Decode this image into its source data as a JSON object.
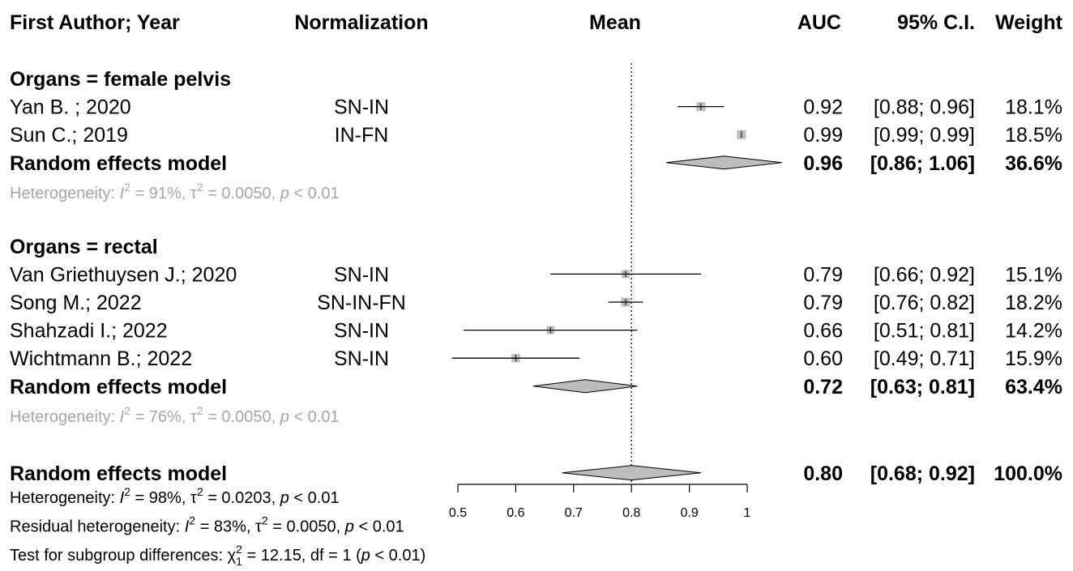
{
  "chart_data": {
    "type": "forest",
    "columns": {
      "author": "First Author; Year",
      "normalization": "Normalization",
      "mean": "Mean",
      "auc": "AUC",
      "ci": "95% C.I.",
      "weight": "Weight"
    },
    "xlim": [
      0.5,
      1
    ],
    "xticks": [
      0.5,
      0.6,
      0.7,
      0.8,
      0.9,
      1
    ],
    "marker_color": "#bdbdbd",
    "diamond_color": "#bdbdbd",
    "group_color": "#a6a6a6",
    "groups": [
      {
        "title": "Organs = female pelvis",
        "studies": [
          {
            "author": "Yan B. ; 2020",
            "normalization": "SN-IN",
            "auc": 0.92,
            "auc_label": "0.92",
            "ci": [
              0.88,
              0.96
            ],
            "ci_label": "[0.88; 0.96]",
            "weight": 18.1,
            "weight_label": "18.1%"
          },
          {
            "author": "Sun C.; 2019",
            "normalization": "IN-FN",
            "auc": 0.99,
            "auc_label": "0.99",
            "ci": [
              0.99,
              0.99
            ],
            "ci_label": "[0.99; 0.99]",
            "weight": 18.5,
            "weight_label": "18.5%"
          }
        ],
        "model": {
          "label": "Random effects model",
          "estimate": 0.96,
          "estimate_label": "0.96",
          "ci": [
            0.86,
            1.06
          ],
          "ci_label": "[0.86; 1.06]",
          "weight": 36.6,
          "weight_label": "36.6%"
        },
        "heterogeneity": [
          {
            "text": "Heterogeneity: "
          },
          {
            "text": "I",
            "style": "italic"
          },
          {
            "text": "2",
            "style": "sup"
          },
          {
            "text": " = 91%, τ"
          },
          {
            "text": "2",
            "style": "sup"
          },
          {
            "text": " = 0.0050, "
          },
          {
            "text": "p",
            "style": "italic"
          },
          {
            "text": " < 0.01"
          }
        ]
      },
      {
        "title": "Organs = rectal",
        "studies": [
          {
            "author": "Van Griethuysen J.; 2020",
            "normalization": "SN-IN",
            "auc": 0.79,
            "auc_label": "0.79",
            "ci": [
              0.66,
              0.92
            ],
            "ci_label": "[0.66; 0.92]",
            "weight": 15.1,
            "weight_label": "15.1%"
          },
          {
            "author": "Song M.; 2022",
            "normalization": "SN-IN-FN",
            "auc": 0.79,
            "auc_label": "0.79",
            "ci": [
              0.76,
              0.82
            ],
            "ci_label": "[0.76; 0.82]",
            "weight": 18.2,
            "weight_label": "18.2%"
          },
          {
            "author": "Shahzadi I.; 2022",
            "normalization": "SN-IN",
            "auc": 0.66,
            "auc_label": "0.66",
            "ci": [
              0.51,
              0.81
            ],
            "ci_label": "[0.51; 0.81]",
            "weight": 14.2,
            "weight_label": "14.2%"
          },
          {
            "author": "Wichtmann B.; 2022",
            "normalization": "SN-IN",
            "auc": 0.6,
            "auc_label": "0.60",
            "ci": [
              0.49,
              0.71
            ],
            "ci_label": "[0.49; 0.71]",
            "weight": 15.9,
            "weight_label": "15.9%"
          }
        ],
        "model": {
          "label": "Random effects model",
          "estimate": 0.72,
          "estimate_label": "0.72",
          "ci": [
            0.63,
            0.81
          ],
          "ci_label": "[0.63; 0.81]",
          "weight": 63.4,
          "weight_label": "63.4%"
        },
        "heterogeneity": [
          {
            "text": "Heterogeneity: "
          },
          {
            "text": "I",
            "style": "italic"
          },
          {
            "text": "2",
            "style": "sup"
          },
          {
            "text": " = 76%, τ"
          },
          {
            "text": "2",
            "style": "sup"
          },
          {
            "text": " = 0.0050, "
          },
          {
            "text": "p",
            "style": "italic"
          },
          {
            "text": " < 0.01"
          }
        ]
      }
    ],
    "overall": {
      "label": "Random effects model",
      "estimate": 0.8,
      "estimate_label": "0.80",
      "ci": [
        0.68,
        0.92
      ],
      "ci_label": "[0.68; 0.92]",
      "weight": 100,
      "weight_label": "100.0%"
    },
    "overall_notes": [
      [
        {
          "text": "Heterogeneity: "
        },
        {
          "text": "I",
          "style": "italic"
        },
        {
          "text": "2",
          "style": "sup"
        },
        {
          "text": " = 98%, τ"
        },
        {
          "text": "2",
          "style": "sup"
        },
        {
          "text": " = 0.0203, "
        },
        {
          "text": "p",
          "style": "italic"
        },
        {
          "text": " < 0.01"
        }
      ],
      [
        {
          "text": "Residual heterogeneity: "
        },
        {
          "text": "I",
          "style": "italic"
        },
        {
          "text": "2",
          "style": "sup"
        },
        {
          "text": " = 83%, τ"
        },
        {
          "text": "2",
          "style": "sup"
        },
        {
          "text": " = 0.0050, "
        },
        {
          "text": "p",
          "style": "italic"
        },
        {
          "text": " < 0.01"
        }
      ],
      [
        {
          "text": "Test for subgroup differences: χ"
        },
        {
          "text": "2",
          "style": "sup"
        },
        {
          "text": "1",
          "style": "sub"
        },
        {
          "text": " = 12.15, df = 1 ("
        },
        {
          "text": "p",
          "style": "italic"
        },
        {
          "text": " < 0.01)"
        }
      ]
    ]
  }
}
